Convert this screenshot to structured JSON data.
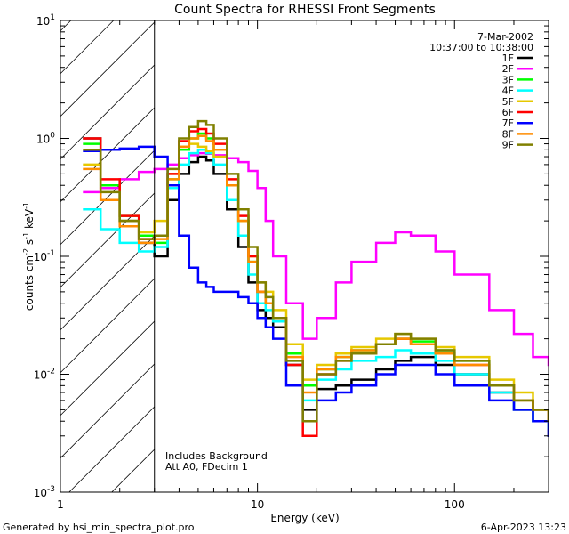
{
  "chart_data": {
    "type": "line",
    "title": "Count Spectra for RHESSI Front Segments",
    "xlabel": "Energy (keV)",
    "ylabel_parts": [
      "counts cm",
      "-2",
      " s",
      "-1",
      " keV",
      "-1"
    ],
    "xscale": "log",
    "yscale": "log",
    "xlim": [
      1,
      300
    ],
    "ylim": [
      0.001,
      10
    ],
    "x_ticks": [
      1,
      10,
      100
    ],
    "x_tick_labels": [
      "1",
      "10",
      "100"
    ],
    "y_ticks": [
      0.001,
      0.01,
      0.1,
      1,
      10
    ],
    "y_tick_labels": [
      [
        "10",
        "-3"
      ],
      [
        "10",
        "-2"
      ],
      [
        "10",
        "-1"
      ],
      [
        "10",
        "0"
      ],
      [
        "10",
        "1"
      ]
    ],
    "date": "7-Mar-2002",
    "time_range": "10:37:00 to 10:38:00",
    "attenuator_energy_keV": 3,
    "annotations": [
      "Includes Background",
      "Att A0, FDecim 1"
    ],
    "series": [
      {
        "name": "1F",
        "color": "#000000",
        "x": [
          1.3,
          1.6,
          2.0,
          2.5,
          3.0,
          3.5,
          4.0,
          4.5,
          5.0,
          5.5,
          6.0,
          7.0,
          8.0,
          9.0,
          10.0,
          11.0,
          12.0,
          14.0,
          17.0,
          20.0,
          25.0,
          30.0,
          40.0,
          50.0,
          60.0,
          80.0,
          100.0,
          150.0,
          200.0,
          250.0,
          300.0
        ],
        "y": [
          1.0,
          0.38,
          0.2,
          0.13,
          0.1,
          0.3,
          0.5,
          0.63,
          0.7,
          0.65,
          0.5,
          0.25,
          0.12,
          0.06,
          0.035,
          0.03,
          0.025,
          0.012,
          0.005,
          0.0075,
          0.008,
          0.009,
          0.011,
          0.013,
          0.014,
          0.012,
          0.01,
          0.007,
          0.005,
          0.004,
          0.003
        ]
      },
      {
        "name": "2F",
        "color": "#ff00ff",
        "x": [
          1.3,
          1.6,
          2.0,
          2.5,
          3.0,
          3.5,
          4.0,
          4.5,
          5.0,
          5.5,
          6.0,
          7.0,
          8.0,
          9.0,
          10.0,
          11.0,
          12.0,
          14.0,
          17.0,
          20.0,
          25.0,
          30.0,
          40.0,
          50.0,
          60.0,
          80.0,
          100.0,
          150.0,
          200.0,
          250.0,
          300.0
        ],
        "y": [
          0.35,
          0.38,
          0.45,
          0.52,
          0.55,
          0.6,
          0.68,
          0.72,
          0.75,
          0.74,
          0.72,
          0.68,
          0.63,
          0.53,
          0.38,
          0.2,
          0.1,
          0.04,
          0.02,
          0.03,
          0.06,
          0.09,
          0.13,
          0.16,
          0.15,
          0.11,
          0.07,
          0.035,
          0.022,
          0.014,
          0.012
        ]
      },
      {
        "name": "3F",
        "color": "#00ff00",
        "x": [
          1.3,
          1.6,
          2.0,
          2.5,
          3.0,
          3.5,
          4.0,
          4.5,
          5.0,
          5.5,
          6.0,
          7.0,
          8.0,
          9.0,
          10.0,
          11.0,
          12.0,
          14.0,
          17.0,
          20.0,
          25.0,
          30.0,
          40.0,
          50.0,
          60.0,
          80.0,
          100.0,
          150.0,
          200.0,
          250.0,
          300.0
        ],
        "y": [
          0.9,
          0.4,
          0.22,
          0.15,
          0.13,
          0.45,
          0.8,
          1.0,
          1.1,
          1.0,
          0.8,
          0.4,
          0.2,
          0.09,
          0.05,
          0.04,
          0.03,
          0.015,
          0.008,
          0.011,
          0.014,
          0.016,
          0.018,
          0.02,
          0.019,
          0.016,
          0.013,
          0.008,
          0.006,
          0.005,
          0.004
        ]
      },
      {
        "name": "4F",
        "color": "#00ffff",
        "x": [
          1.3,
          1.6,
          2.0,
          2.5,
          3.0,
          3.5,
          4.0,
          4.5,
          5.0,
          5.5,
          6.0,
          7.0,
          8.0,
          9.0,
          10.0,
          11.0,
          12.0,
          14.0,
          17.0,
          20.0,
          25.0,
          30.0,
          40.0,
          50.0,
          60.0,
          80.0,
          100.0,
          150.0,
          200.0,
          250.0,
          300.0
        ],
        "y": [
          0.25,
          0.17,
          0.13,
          0.11,
          0.12,
          0.38,
          0.6,
          0.75,
          0.8,
          0.75,
          0.6,
          0.3,
          0.15,
          0.07,
          0.04,
          0.035,
          0.028,
          0.013,
          0.006,
          0.009,
          0.011,
          0.013,
          0.014,
          0.016,
          0.015,
          0.013,
          0.01,
          0.007,
          0.005,
          0.004,
          0.0035
        ]
      },
      {
        "name": "5F",
        "color": "#e6c800",
        "x": [
          1.3,
          1.6,
          2.0,
          2.5,
          3.0,
          3.5,
          4.0,
          4.5,
          5.0,
          5.5,
          6.0,
          7.0,
          8.0,
          9.0,
          10.0,
          11.0,
          12.0,
          14.0,
          17.0,
          20.0,
          25.0,
          30.0,
          40.0,
          50.0,
          60.0,
          80.0,
          100.0,
          150.0,
          200.0,
          250.0,
          300.0
        ],
        "y": [
          0.6,
          0.3,
          0.2,
          0.16,
          0.2,
          0.5,
          0.85,
          0.9,
          0.85,
          0.78,
          0.7,
          0.4,
          0.2,
          0.1,
          0.06,
          0.05,
          0.035,
          0.018,
          0.009,
          0.012,
          0.015,
          0.017,
          0.02,
          0.022,
          0.02,
          0.017,
          0.014,
          0.009,
          0.007,
          0.005,
          0.004
        ]
      },
      {
        "name": "6F",
        "color": "#ff0000",
        "x": [
          1.3,
          1.6,
          2.0,
          2.5,
          3.0,
          3.5,
          4.0,
          4.5,
          5.0,
          5.5,
          6.0,
          7.0,
          8.0,
          9.0,
          10.0,
          11.0,
          12.0,
          14.0,
          17.0,
          20.0,
          25.0,
          30.0,
          40.0,
          50.0,
          60.0,
          80.0,
          100.0,
          150.0,
          200.0,
          250.0,
          300.0
        ],
        "y": [
          1.0,
          0.45,
          0.22,
          0.14,
          0.15,
          0.5,
          0.95,
          1.15,
          1.2,
          1.1,
          0.9,
          0.45,
          0.22,
          0.1,
          0.05,
          0.04,
          0.03,
          0.012,
          0.003,
          0.01,
          0.013,
          0.015,
          0.018,
          0.02,
          0.018,
          0.015,
          0.012,
          0.008,
          0.006,
          0.005,
          0.004
        ]
      },
      {
        "name": "7F",
        "color": "#0000ff",
        "x": [
          1.3,
          1.6,
          2.0,
          2.5,
          3.0,
          3.5,
          4.0,
          4.5,
          5.0,
          5.5,
          6.0,
          7.0,
          8.0,
          9.0,
          10.0,
          11.0,
          12.0,
          14.0,
          17.0,
          20.0,
          25.0,
          30.0,
          40.0,
          50.0,
          60.0,
          80.0,
          100.0,
          150.0,
          200.0,
          250.0,
          300.0
        ],
        "y": [
          0.78,
          0.8,
          0.82,
          0.85,
          0.7,
          0.4,
          0.15,
          0.08,
          0.06,
          0.055,
          0.05,
          0.05,
          0.045,
          0.04,
          0.03,
          0.025,
          0.02,
          0.008,
          0.004,
          0.006,
          0.007,
          0.008,
          0.01,
          0.012,
          0.012,
          0.01,
          0.008,
          0.006,
          0.005,
          0.004,
          0.003
        ]
      },
      {
        "name": "8F",
        "color": "#ff8c00",
        "x": [
          1.3,
          1.6,
          2.0,
          2.5,
          3.0,
          3.5,
          4.0,
          4.5,
          5.0,
          5.5,
          6.0,
          7.0,
          8.0,
          9.0,
          10.0,
          11.0,
          12.0,
          14.0,
          17.0,
          20.0,
          25.0,
          30.0,
          40.0,
          50.0,
          60.0,
          80.0,
          100.0,
          150.0,
          200.0,
          250.0,
          300.0
        ],
        "y": [
          0.55,
          0.3,
          0.18,
          0.13,
          0.14,
          0.45,
          0.85,
          1.0,
          1.05,
          0.95,
          0.8,
          0.4,
          0.2,
          0.09,
          0.05,
          0.04,
          0.03,
          0.014,
          0.007,
          0.011,
          0.014,
          0.016,
          0.018,
          0.02,
          0.018,
          0.015,
          0.012,
          0.008,
          0.006,
          0.005,
          0.004
        ]
      },
      {
        "name": "9F",
        "color": "#808000",
        "x": [
          1.3,
          1.6,
          2.0,
          2.5,
          3.0,
          3.5,
          4.0,
          4.5,
          5.0,
          5.5,
          6.0,
          7.0,
          8.0,
          9.0,
          10.0,
          11.0,
          12.0,
          14.0,
          17.0,
          20.0,
          25.0,
          30.0,
          40.0,
          50.0,
          60.0,
          80.0,
          100.0,
          150.0,
          200.0,
          250.0,
          300.0
        ],
        "y": [
          0.8,
          0.35,
          0.2,
          0.14,
          0.15,
          0.55,
          1.0,
          1.25,
          1.4,
          1.3,
          1.0,
          0.5,
          0.25,
          0.12,
          0.06,
          0.045,
          0.03,
          0.013,
          0.004,
          0.01,
          0.013,
          0.015,
          0.018,
          0.022,
          0.02,
          0.016,
          0.013,
          0.008,
          0.006,
          0.005,
          0.004
        ]
      }
    ]
  },
  "footer": {
    "left": "Generated by hsi_min_spectra_plot.pro",
    "right": "6-Apr-2023 13:23"
  }
}
